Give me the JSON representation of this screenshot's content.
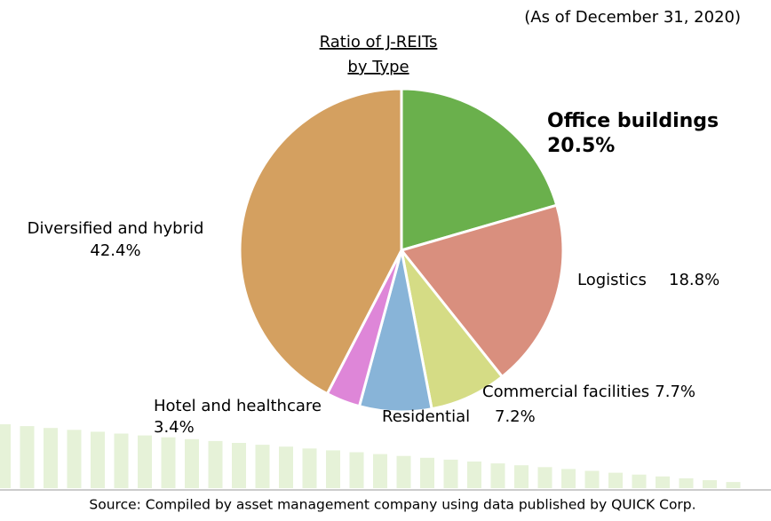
{
  "chart_data": {
    "type": "pie",
    "title": [
      "Ratio of J-REITs",
      "by Type"
    ],
    "subtitle": "(As of December 31, 2020)",
    "categories": [
      "Office buildings",
      "Logistics",
      "Commercial facilities",
      "Residential",
      "Hotel and healthcare",
      "Diversified and hybrid"
    ],
    "values": [
      20.5,
      18.8,
      7.7,
      7.2,
      3.4,
      42.4
    ],
    "value_labels": [
      "20.5%",
      "18.8%",
      "7.7%",
      "7.2%",
      "3.4%",
      "42.4%"
    ],
    "colors": [
      "#6ab04c",
      "#d98f7e",
      "#d5dc85",
      "#88b4d8",
      "#de86d8",
      "#d4a060"
    ],
    "source": "Source: Compiled by asset management company using data published by QUICK Corp."
  }
}
